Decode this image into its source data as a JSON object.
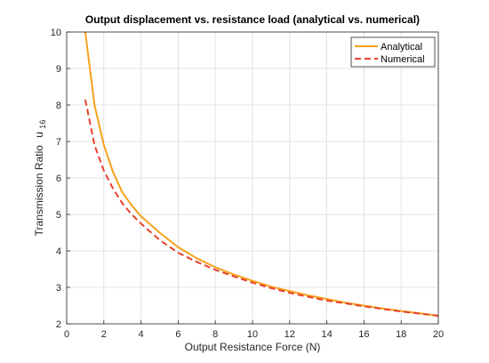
{
  "chart_data": {
    "type": "line",
    "title": "Output displacement vs. resistance load (analytical vs. numerical)",
    "xlabel": "Output Resistance Force (N)",
    "ylabel_main": "Transmission  Ratio",
    "ylabel_var": "u",
    "ylabel_sub": "16",
    "xlim": [
      0,
      20
    ],
    "ylim": [
      2,
      10
    ],
    "xticks": [
      "0",
      "2",
      "4",
      "6",
      "8",
      "10",
      "12",
      "14",
      "16",
      "18",
      "20"
    ],
    "yticks": [
      "2",
      "3",
      "4",
      "5",
      "6",
      "7",
      "8",
      "9",
      "10"
    ],
    "grid": true,
    "legend_position": "top-right",
    "series": [
      {
        "name": "Analytical",
        "color": "#f5a21b",
        "style": "solid",
        "x": [
          1.0,
          1.5,
          2.0,
          2.5,
          3.0,
          3.5,
          4.0,
          5.0,
          6.0,
          7.0,
          8.0,
          9.0,
          10.0,
          11.0,
          12.0,
          13.0,
          14.0,
          15.0,
          16.0,
          17.0,
          18.0,
          19.0,
          20.0
        ],
        "y": [
          10.0,
          8.0,
          6.9,
          6.15,
          5.6,
          5.25,
          4.95,
          4.5,
          4.1,
          3.8,
          3.55,
          3.35,
          3.18,
          3.02,
          2.9,
          2.78,
          2.68,
          2.58,
          2.5,
          2.42,
          2.35,
          2.29,
          2.22
        ]
      },
      {
        "name": "Numerical",
        "color": "#e8412c",
        "style": "dashed",
        "x": [
          1.0,
          1.5,
          2.0,
          2.5,
          3.0,
          3.5,
          4.0,
          5.0,
          6.0,
          7.0,
          8.0,
          9.0,
          10.0,
          11.0,
          12.0,
          13.0,
          14.0,
          15.0,
          16.0,
          17.0,
          18.0,
          19.0,
          20.0
        ],
        "y": [
          8.15,
          6.9,
          6.2,
          5.7,
          5.3,
          5.0,
          4.75,
          4.3,
          3.95,
          3.7,
          3.48,
          3.3,
          3.13,
          2.98,
          2.85,
          2.74,
          2.64,
          2.56,
          2.48,
          2.41,
          2.34,
          2.28,
          2.22
        ]
      }
    ]
  }
}
